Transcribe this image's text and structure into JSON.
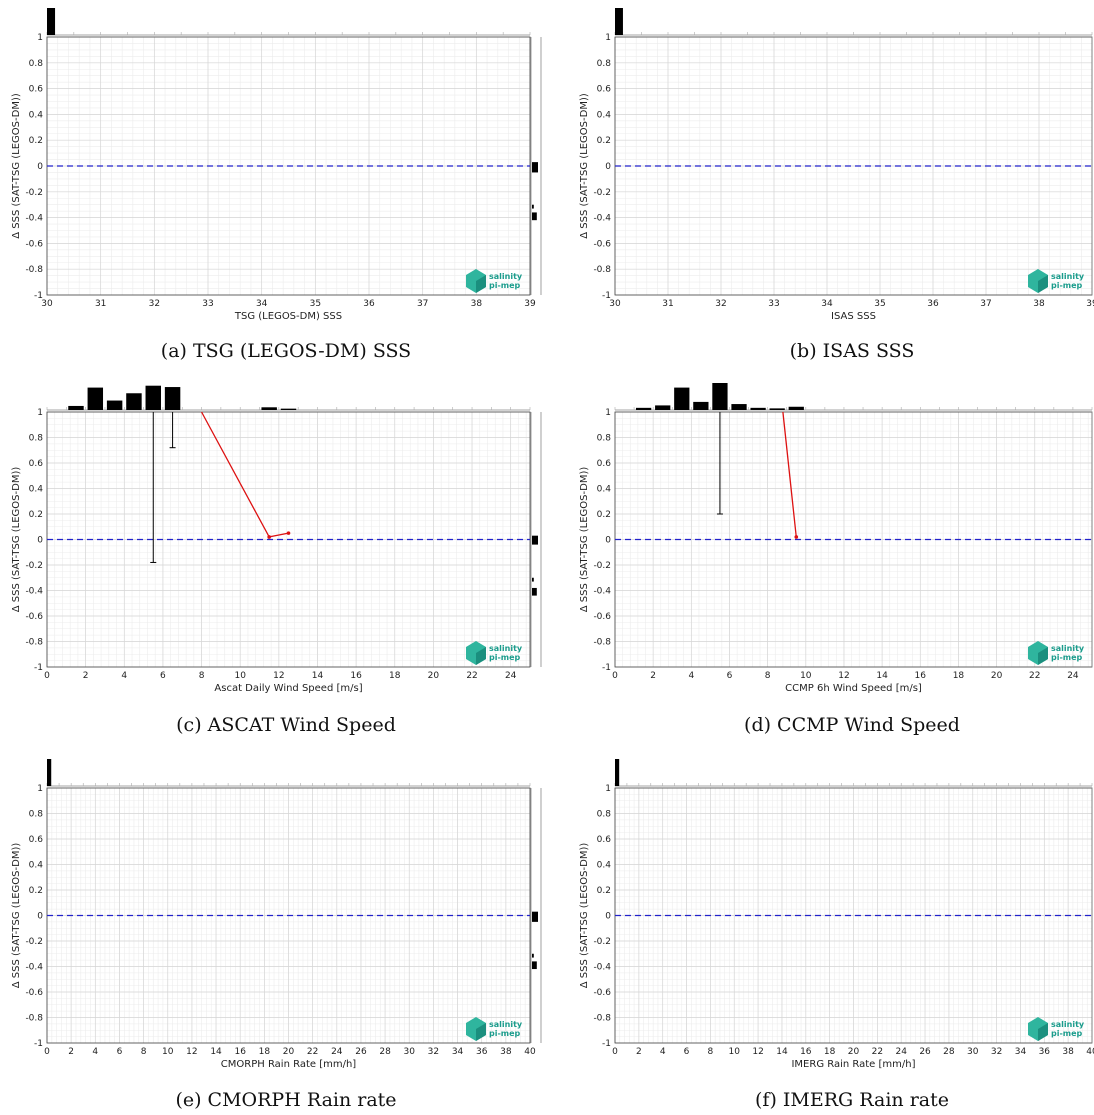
{
  "figure": {
    "logo": {
      "line1": "salinity",
      "line2": "pi-mep"
    }
  },
  "chart_data": [
    {
      "type": "scatter",
      "caption": "(a) TSG (LEGOS-DM) SSS",
      "xlabel": "TSG (LEGOS-DM) SSS",
      "ylabel": "Δ SSS (SAT-TSG (LEGOS-DM))",
      "xlim": [
        30,
        39
      ],
      "ylim": [
        -1,
        1
      ],
      "xticks": [
        30,
        31,
        32,
        33,
        34,
        35,
        36,
        37,
        38,
        39
      ],
      "yticks": [
        -1,
        -0.8,
        -0.6,
        -0.4,
        -0.2,
        0,
        0.2,
        0.4,
        0.6,
        0.8,
        1
      ],
      "grid": true,
      "reference_line": {
        "y": 0,
        "color": "#2222cc",
        "style": "dashed"
      },
      "top_histogram": [
        {
          "x0": 30.0,
          "x1": 30.15,
          "h": 1.0
        }
      ],
      "side_histogram": [
        {
          "y0": -0.05,
          "y1": 0.03,
          "w": 1.0
        },
        {
          "y0": -0.42,
          "y1": -0.36,
          "w": 0.8
        },
        {
          "y0": -0.33,
          "y1": -0.3,
          "w": 0.3
        }
      ],
      "errorbars": [],
      "mean_line": []
    },
    {
      "type": "scatter",
      "caption": "(b) ISAS SSS",
      "xlabel": "ISAS SSS",
      "ylabel": "Δ SSS (SAT-TSG (LEGOS-DM))",
      "xlim": [
        30,
        39
      ],
      "ylim": [
        -1,
        1
      ],
      "xticks": [
        30,
        31,
        32,
        33,
        34,
        35,
        36,
        37,
        38,
        39
      ],
      "yticks": [
        -1,
        -0.8,
        -0.6,
        -0.4,
        -0.2,
        0,
        0.2,
        0.4,
        0.6,
        0.8,
        1
      ],
      "grid": true,
      "reference_line": {
        "y": 0,
        "color": "#2222cc",
        "style": "dashed"
      },
      "top_histogram": [
        {
          "x0": 30.0,
          "x1": 30.15,
          "h": 1.0
        }
      ],
      "side_histogram": [],
      "errorbars": [],
      "mean_line": []
    },
    {
      "type": "scatter",
      "caption": "(c) ASCAT Wind Speed",
      "xlabel": "Ascat Daily Wind Speed [m/s]",
      "ylabel": "Δ SSS (SAT-TSG (LEGOS-DM))",
      "xlim": [
        0,
        25
      ],
      "ylim": [
        -1,
        1
      ],
      "xticks": [
        0,
        2,
        4,
        6,
        8,
        10,
        12,
        14,
        16,
        18,
        20,
        22,
        24
      ],
      "yticks": [
        -1,
        -0.8,
        -0.6,
        -0.4,
        -0.2,
        0,
        0.2,
        0.4,
        0.6,
        0.8,
        1
      ],
      "grid": true,
      "reference_line": {
        "y": 0,
        "color": "#2222cc",
        "style": "dashed"
      },
      "top_histogram": [
        {
          "x0": 1.1,
          "x1": 1.9,
          "h": 0.15
        },
        {
          "x0": 2.1,
          "x1": 2.9,
          "h": 0.83
        },
        {
          "x0": 3.1,
          "x1": 3.9,
          "h": 0.35
        },
        {
          "x0": 4.1,
          "x1": 4.9,
          "h": 0.62
        },
        {
          "x0": 5.1,
          "x1": 5.9,
          "h": 0.9
        },
        {
          "x0": 6.1,
          "x1": 6.9,
          "h": 0.85
        },
        {
          "x0": 11.1,
          "x1": 11.9,
          "h": 0.1
        },
        {
          "x0": 12.1,
          "x1": 12.9,
          "h": 0.05
        }
      ],
      "side_histogram": [
        {
          "y0": -0.04,
          "y1": 0.03,
          "w": 1.0
        },
        {
          "y0": -0.44,
          "y1": -0.38,
          "w": 0.8
        },
        {
          "y0": -0.33,
          "y1": -0.3,
          "w": 0.3
        }
      ],
      "errorbars": [
        {
          "x": 5.5,
          "y_low": -0.18,
          "y_high": 1.0
        },
        {
          "x": 6.5,
          "y_low": 0.72,
          "y_high": 1.0
        }
      ],
      "mean_line": [
        {
          "x": 8.0,
          "y": 1.0
        },
        {
          "x": 11.5,
          "y": 0.02
        },
        {
          "x": 12.5,
          "y": 0.05
        }
      ]
    },
    {
      "type": "scatter",
      "caption": "(d) CCMP Wind Speed",
      "xlabel": "CCMP 6h Wind Speed [m/s]",
      "ylabel": "Δ SSS (SAT-TSG (LEGOS-DM))",
      "xlim": [
        0,
        25
      ],
      "ylim": [
        -1,
        1
      ],
      "xticks": [
        0,
        2,
        4,
        6,
        8,
        10,
        12,
        14,
        16,
        18,
        20,
        22,
        24
      ],
      "yticks": [
        -1,
        -0.8,
        -0.6,
        -0.4,
        -0.2,
        0,
        0.2,
        0.4,
        0.6,
        0.8,
        1
      ],
      "grid": true,
      "reference_line": {
        "y": 0,
        "color": "#2222cc",
        "style": "dashed"
      },
      "top_histogram": [
        {
          "x0": 1.1,
          "x1": 1.9,
          "h": 0.08
        },
        {
          "x0": 2.1,
          "x1": 2.9,
          "h": 0.17
        },
        {
          "x0": 3.1,
          "x1": 3.9,
          "h": 0.83
        },
        {
          "x0": 4.1,
          "x1": 4.9,
          "h": 0.3
        },
        {
          "x0": 5.1,
          "x1": 5.9,
          "h": 1.0
        },
        {
          "x0": 6.1,
          "x1": 6.9,
          "h": 0.22
        },
        {
          "x0": 7.1,
          "x1": 7.9,
          "h": 0.08
        },
        {
          "x0": 8.1,
          "x1": 8.9,
          "h": 0.06
        },
        {
          "x0": 9.1,
          "x1": 9.9,
          "h": 0.12
        }
      ],
      "side_histogram": [],
      "errorbars": [
        {
          "x": 5.5,
          "y_low": 0.2,
          "y_high": 1.0
        }
      ],
      "mean_line": [
        {
          "x": 8.8,
          "y": 1.0
        },
        {
          "x": 9.5,
          "y": 0.02
        }
      ]
    },
    {
      "type": "scatter",
      "caption": "(e) CMORPH Rain rate",
      "xlabel": "CMORPH Rain Rate [mm/h]",
      "ylabel": "Δ SSS (SAT-TSG (LEGOS-DM))",
      "xlim": [
        0,
        40
      ],
      "ylim": [
        -1,
        1
      ],
      "xticks": [
        0,
        2,
        4,
        6,
        8,
        10,
        12,
        14,
        16,
        18,
        20,
        22,
        24,
        26,
        28,
        30,
        32,
        34,
        36,
        38,
        40
      ],
      "yticks": [
        -1,
        -0.8,
        -0.6,
        -0.4,
        -0.2,
        0,
        0.2,
        0.4,
        0.6,
        0.8,
        1
      ],
      "grid": true,
      "reference_line": {
        "y": 0,
        "color": "#2222cc",
        "style": "dashed"
      },
      "top_histogram": [
        {
          "x0": 0.0,
          "x1": 0.35,
          "h": 1.0
        }
      ],
      "side_histogram": [
        {
          "y0": -0.05,
          "y1": 0.03,
          "w": 1.0
        },
        {
          "y0": -0.42,
          "y1": -0.36,
          "w": 0.8
        },
        {
          "y0": -0.33,
          "y1": -0.3,
          "w": 0.3
        }
      ],
      "errorbars": [],
      "mean_line": []
    },
    {
      "type": "scatter",
      "caption": "(f) IMERG Rain rate",
      "xlabel": "IMERG Rain Rate [mm/h]",
      "ylabel": "Δ SSS (SAT-TSG (LEGOS-DM))",
      "xlim": [
        0,
        40
      ],
      "ylim": [
        -1,
        1
      ],
      "xticks": [
        0,
        2,
        4,
        6,
        8,
        10,
        12,
        14,
        16,
        18,
        20,
        22,
        24,
        26,
        28,
        30,
        32,
        34,
        36,
        38,
        40
      ],
      "yticks": [
        -1,
        -0.8,
        -0.6,
        -0.4,
        -0.2,
        0,
        0.2,
        0.4,
        0.6,
        0.8,
        1
      ],
      "grid": true,
      "reference_line": {
        "y": 0,
        "color": "#2222cc",
        "style": "dashed"
      },
      "top_histogram": [
        {
          "x0": 0.0,
          "x1": 0.35,
          "h": 1.0
        }
      ],
      "side_histogram": [],
      "errorbars": [],
      "mean_line": []
    }
  ]
}
